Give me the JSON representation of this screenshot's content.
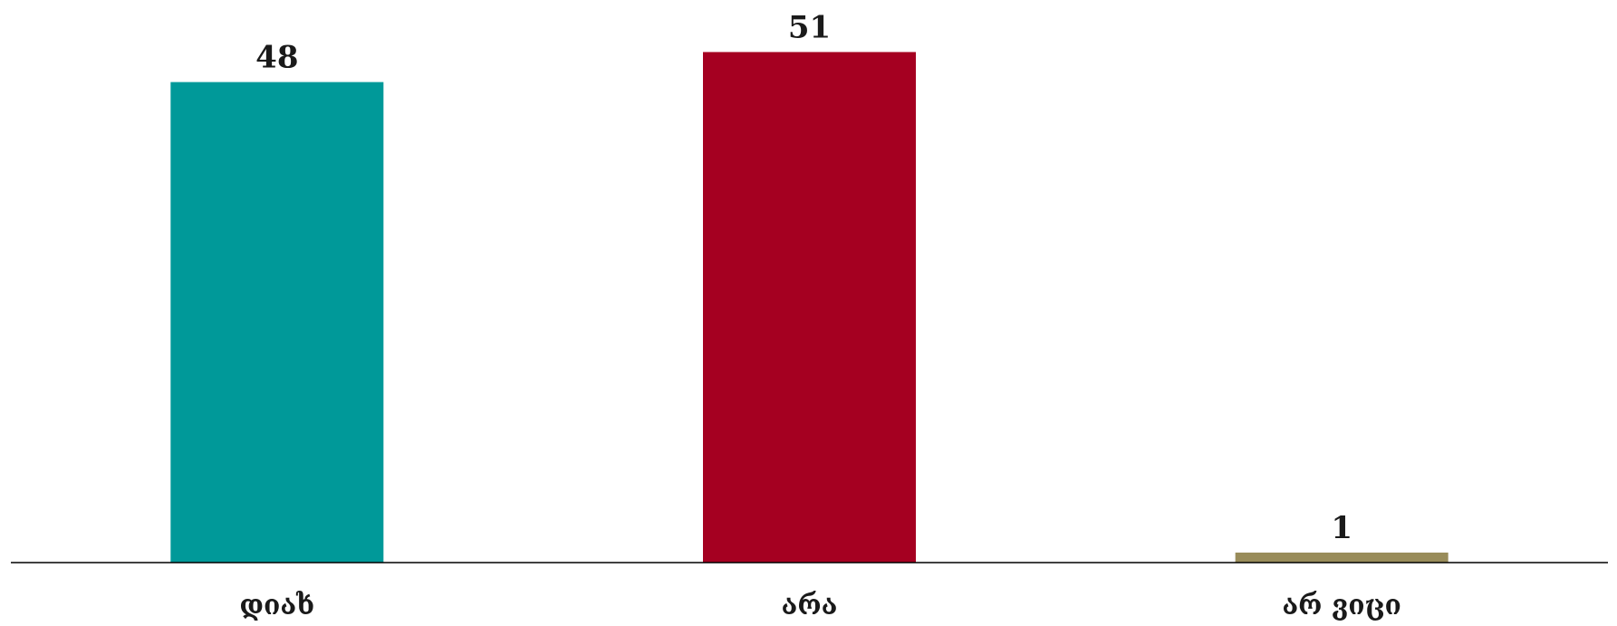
{
  "chart_data": {
    "type": "bar",
    "categories": [
      "დიახ",
      "არა",
      "არ ვიცი"
    ],
    "values": [
      48,
      51,
      1
    ],
    "colors": [
      "#009999",
      "#a50021",
      "#998c5a"
    ],
    "title": "",
    "xlabel": "",
    "ylabel": "",
    "ylim": [
      0,
      55
    ],
    "grid": false,
    "legend": "none",
    "data_labels": true
  }
}
